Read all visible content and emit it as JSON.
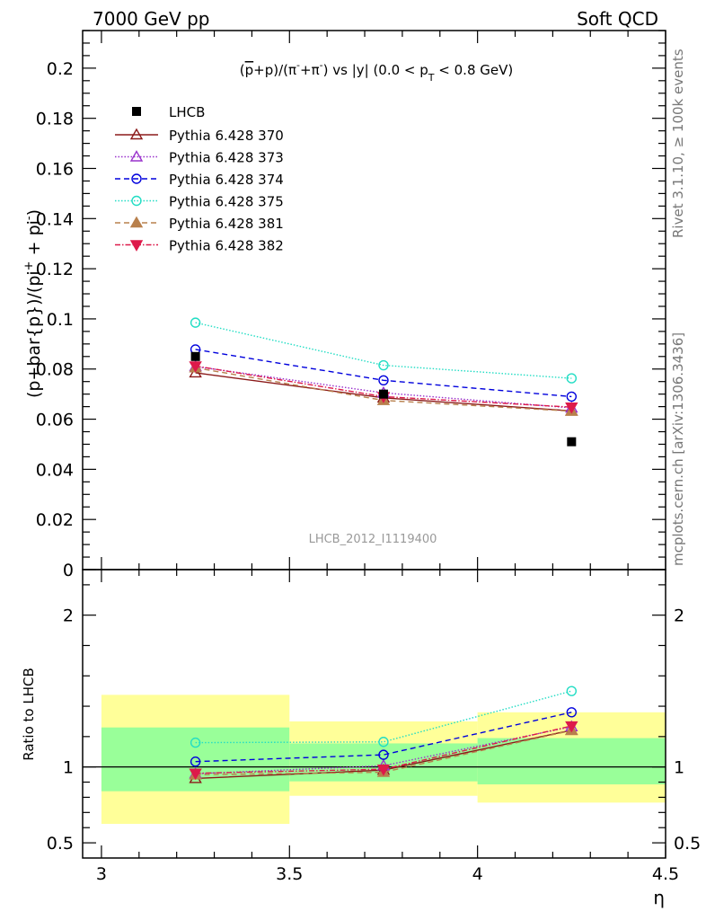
{
  "header": {
    "left": "7000 GeV pp",
    "right": "Soft QCD",
    "side_top": "Rivet 3.1.10, ≥ 100k events",
    "side_bottom": "mcplots.cern.ch [arXiv:1306.3436]",
    "analysis": "LHCB_2012_I1119400"
  },
  "chart_data": {
    "type": "line",
    "title": "(p̅+p)/(π⁻+π⁻) vs |y| (0.0 < p_T < 0.8 GeV)",
    "title_parts": {
      "pre": "(",
      "pbar": "p",
      "mid": "+p)/(π",
      "sup1": "-",
      "mid2": "+π",
      "sup2": "-",
      "mid3": ") vs |y| (0.0 < p",
      "sub": "T",
      "post": " < 0.8 GeV)"
    },
    "ylabel": "(p+bar{p})/(pi⁺ + pi⁻)",
    "ylabel_parts": {
      "main": "(p+bar{p})/(pi",
      "sup1": "+",
      "mid": " + pi",
      "sup2": "-",
      "close": ")"
    },
    "ratio_ylabel": "Ratio to LHCB",
    "xlabel": "η",
    "xlim": [
      2.95,
      4.5
    ],
    "ylim": [
      0,
      0.215
    ],
    "ratio_ylim": [
      0.4,
      2.3
    ],
    "x_ticks": [
      3,
      3.5,
      4,
      4.5
    ],
    "x_tick_labels": [
      "3",
      "3.5",
      "4",
      "4.5"
    ],
    "y_ticks": [
      0,
      0.02,
      0.04,
      0.06,
      0.08,
      0.1,
      0.12,
      0.14,
      0.16,
      0.18,
      0.2
    ],
    "y_tick_labels": [
      "0",
      "0.02",
      "0.04",
      "0.06",
      "0.08",
      "0.1",
      "0.12",
      "0.14",
      "0.16",
      "0.18",
      "0.2"
    ],
    "ratio_y_ticks": [
      0.5,
      1,
      2
    ],
    "ratio_y_tick_labels": [
      "0.5",
      "1",
      "2"
    ],
    "legend_position": "top-left",
    "bins": [
      [
        3.0,
        3.5
      ],
      [
        3.5,
        4.0
      ],
      [
        4.0,
        4.5
      ]
    ],
    "x": [
      3.25,
      3.75,
      4.25
    ],
    "data": {
      "name": "LHCB",
      "values": [
        0.085,
        0.07,
        0.051
      ],
      "color": "#000000"
    },
    "ratio_bands": {
      "inner": [
        [
          0.84,
          1.26
        ],
        [
          0.905,
          1.155
        ],
        [
          0.885,
          1.19
        ]
      ],
      "outer": [
        [
          0.625,
          1.475
        ],
        [
          0.81,
          1.3
        ],
        [
          0.765,
          1.36
        ]
      ],
      "inner_color": "#99ff99",
      "outer_color": "#ffff99"
    },
    "series": [
      {
        "name": "Pythia 6.428 370",
        "values": [
          0.0785,
          0.0685,
          0.0633
        ],
        "ratio": [
          0.924,
          0.979,
          1.242
        ],
        "color": "#8b1a1a",
        "dash": "",
        "marker": "triangle-open"
      },
      {
        "name": "Pythia 6.428 373",
        "values": [
          0.081,
          0.0705,
          0.0645
        ],
        "ratio": [
          0.955,
          1.008,
          1.265
        ],
        "color": "#9932cc",
        "dash": "1.5,2",
        "marker": "triangle-open"
      },
      {
        "name": "Pythia 6.428 374",
        "values": [
          0.0878,
          0.0755,
          0.069
        ],
        "ratio": [
          1.035,
          1.08,
          1.36
        ],
        "color": "#0000dd",
        "dash": "6,4",
        "marker": "circle-open"
      },
      {
        "name": "Pythia 6.428 375",
        "values": [
          0.0985,
          0.0815,
          0.0763
        ],
        "ratio": [
          1.16,
          1.165,
          1.5
        ],
        "color": "#22ddc4",
        "dash": "1.5,2",
        "marker": "circle-open"
      },
      {
        "name": "Pythia 6.428 381",
        "values": [
          0.0805,
          0.0675,
          0.0632
        ],
        "ratio": [
          0.948,
          0.965,
          1.24
        ],
        "color": "#b8804d",
        "dash": "6,4",
        "marker": "triangle-filled"
      },
      {
        "name": "Pythia 6.428 382",
        "values": [
          0.0812,
          0.069,
          0.0648
        ],
        "ratio": [
          0.958,
          0.985,
          1.27
        ],
        "color": "#dd1a4a",
        "dash": "6,2,1.5,2",
        "marker": "triangle-down-filled"
      }
    ]
  }
}
